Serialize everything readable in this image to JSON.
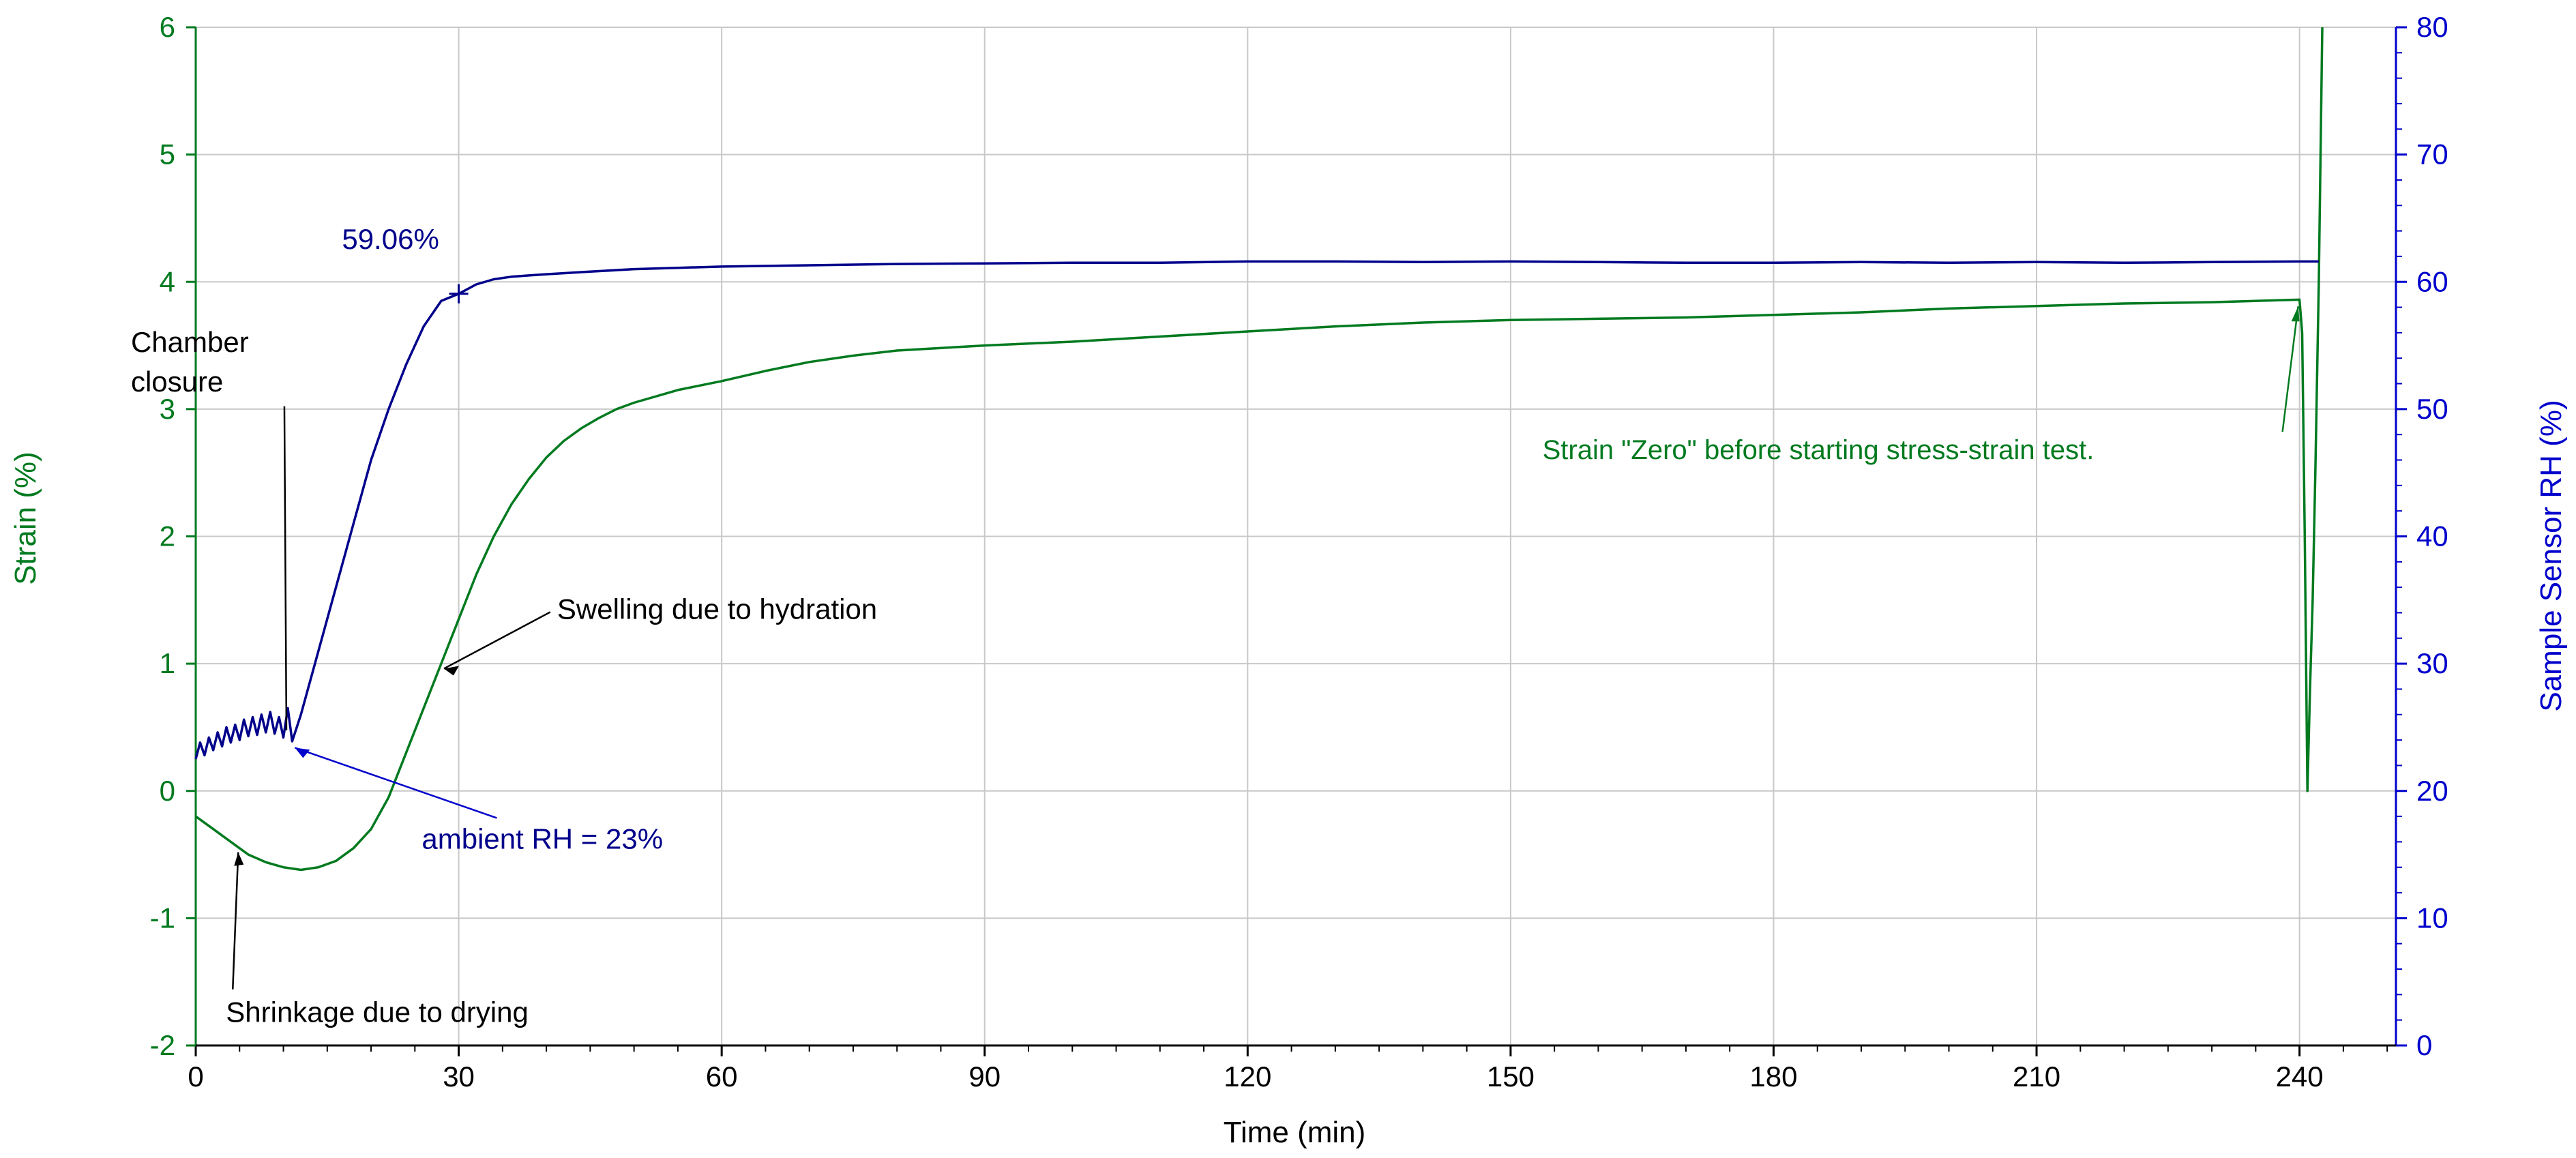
{
  "chart_data": {
    "type": "line",
    "xlabel": "Time (min)",
    "ylabel_left": "Strain (%)",
    "ylabel_right": "Sample Sensor RH (%)",
    "xlim": [
      0,
      251
    ],
    "ylim_left": [
      -2,
      6
    ],
    "ylim_right": [
      0,
      80
    ],
    "grid": true,
    "x_ticks": [
      0,
      30,
      60,
      90,
      120,
      150,
      180,
      210,
      240
    ],
    "x_tick_labels": [
      "0",
      "30",
      "60",
      "90",
      "120",
      "150",
      "180",
      "210",
      "240"
    ],
    "y_left_ticks": [
      -2,
      -1,
      0,
      1,
      2,
      3,
      4,
      5,
      6
    ],
    "y_left_tick_labels": [
      "-2",
      "-1",
      "0",
      "1",
      "2",
      "3",
      "4",
      "5",
      "6"
    ],
    "y_right_ticks": [
      0,
      10,
      20,
      30,
      40,
      50,
      60,
      70,
      80
    ],
    "y_right_tick_labels": [
      "0",
      "10",
      "20",
      "30",
      "40",
      "50",
      "60",
      "70",
      "80"
    ],
    "colors": {
      "strain": "#007a1f",
      "rh": "#00008b",
      "grid": "#c8c8c8",
      "annotation": "#000000"
    },
    "series": [
      {
        "axis": "left",
        "color": "#007a1f",
        "x": [
          0,
          2,
          4,
          6,
          8,
          10,
          12,
          14,
          16,
          18,
          20,
          22,
          24,
          26,
          28,
          30,
          32,
          34,
          36,
          38,
          40,
          42,
          44,
          46,
          48,
          50,
          55,
          60,
          65,
          70,
          75,
          80,
          90,
          100,
          110,
          120,
          130,
          140,
          150,
          160,
          170,
          180,
          190,
          200,
          210,
          220,
          230,
          240,
          240.3,
          240.6,
          240.9,
          241.2,
          241.5,
          241.8,
          242.2,
          242.6
        ],
        "y": [
          -0.2,
          -0.3,
          -0.4,
          -0.5,
          -0.56,
          -0.6,
          -0.62,
          -0.6,
          -0.55,
          -0.45,
          -0.3,
          -0.05,
          0.3,
          0.65,
          1.0,
          1.35,
          1.7,
          2.0,
          2.25,
          2.45,
          2.62,
          2.75,
          2.85,
          2.93,
          3.0,
          3.05,
          3.15,
          3.22,
          3.3,
          3.37,
          3.42,
          3.46,
          3.5,
          3.53,
          3.57,
          3.61,
          3.65,
          3.68,
          3.7,
          3.71,
          3.72,
          3.74,
          3.76,
          3.79,
          3.81,
          3.83,
          3.84,
          3.86,
          3.6,
          2.0,
          0.0,
          0.8,
          1.5,
          2.5,
          4.0,
          6.0
        ]
      },
      {
        "axis": "right",
        "color": "#00008b",
        "x": [
          0,
          0.5,
          1,
          1.5,
          2,
          2.5,
          3,
          3.5,
          4,
          4.5,
          5,
          5.5,
          6,
          6.5,
          7,
          7.5,
          8,
          8.5,
          9,
          9.5,
          10,
          10.5,
          11,
          12,
          14,
          16,
          18,
          20,
          22,
          24,
          26,
          28,
          30,
          32,
          34,
          36,
          38,
          40,
          45,
          50,
          55,
          60,
          70,
          80,
          90,
          100,
          110,
          120,
          130,
          140,
          150,
          160,
          170,
          180,
          190,
          200,
          210,
          220,
          230,
          240,
          242.2
        ],
        "y": [
          22.5,
          23.8,
          22.8,
          24.2,
          23.2,
          24.6,
          23.5,
          25.0,
          23.8,
          25.2,
          24.0,
          25.6,
          24.3,
          25.8,
          24.4,
          26.0,
          24.6,
          26.2,
          24.5,
          25.8,
          24.2,
          26.5,
          23.9,
          26.0,
          31.0,
          36.0,
          41.0,
          46.0,
          50.0,
          53.5,
          56.5,
          58.5,
          59.06,
          59.8,
          60.2,
          60.4,
          60.5,
          60.6,
          60.8,
          61.0,
          61.1,
          61.2,
          61.3,
          61.4,
          61.45,
          61.5,
          61.5,
          61.6,
          61.6,
          61.55,
          61.6,
          61.55,
          61.5,
          61.5,
          61.55,
          61.5,
          61.55,
          61.5,
          61.55,
          61.6,
          61.6
        ]
      }
    ],
    "annotations": [
      {
        "text": "59.06%",
        "color": "#00008b",
        "anchor": "right",
        "axis": "right",
        "x": 30,
        "y": 59.06
      },
      {
        "text": "Chamber",
        "text2": "closure",
        "color": "#000000",
        "anchor": "right",
        "axis": "right",
        "x": 10.5,
        "y": 24.5
      },
      {
        "text": "Swelling due to hydration",
        "color": "#000000",
        "anchor": "right",
        "axis": "left",
        "x": 28,
        "y": 0.95
      },
      {
        "text": "ambient RH = 23%",
        "color": "#00008b",
        "anchor": "right",
        "axis": "right",
        "x": 11,
        "y": 23.5
      },
      {
        "text": "Shrinkage due to drying",
        "color": "#000000",
        "anchor": "left",
        "axis": "left",
        "x": 5,
        "y": -0.45
      },
      {
        "text": "Strain \"Zero\" before starting stress-strain test.",
        "color": "#007a1f",
        "anchor": "left",
        "axis": "left",
        "x": 240,
        "y": 3.85
      }
    ]
  }
}
